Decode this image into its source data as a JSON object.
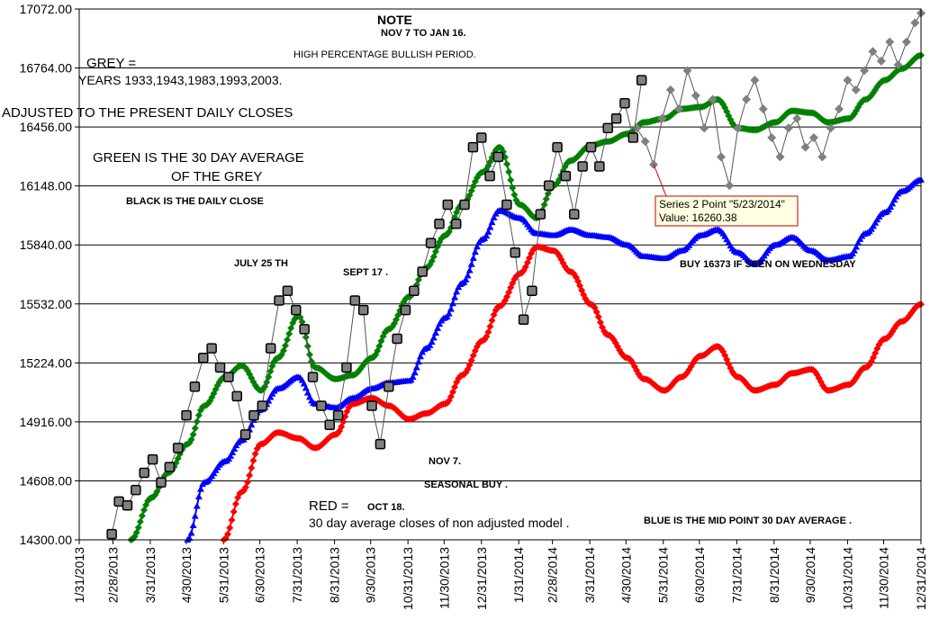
{
  "chart_data": {
    "type": "line",
    "ylim": [
      14300,
      17072
    ],
    "y_ticks": [
      "17072.00",
      "16764.00",
      "16456.00",
      "16148.00",
      "15840.00",
      "15532.00",
      "15224.00",
      "14916.00",
      "14608.00",
      "14300.00"
    ],
    "x_range": [
      "2013-01-31",
      "2014-12-31"
    ],
    "x_ticks": [
      {
        "date": "2013-01-31",
        "label": "1/31/2013"
      },
      {
        "date": "2013-02-28",
        "label": "2/28/2013"
      },
      {
        "date": "2013-03-31",
        "label": "3/31/2013"
      },
      {
        "date": "2013-04-30",
        "label": "4/30/2013"
      },
      {
        "date": "2013-05-31",
        "label": "5/31/2013"
      },
      {
        "date": "2013-06-30",
        "label": "6/30/2013"
      },
      {
        "date": "2013-07-31",
        "label": "7/31/2013"
      },
      {
        "date": "2013-08-31",
        "label": "8/31/2013"
      },
      {
        "date": "2013-09-30",
        "label": "9/30/2013"
      },
      {
        "date": "2013-10-31",
        "label": "10/31/2013"
      },
      {
        "date": "2013-11-30",
        "label": "11/30/2013"
      },
      {
        "date": "2013-12-31",
        "label": "12/31/2013"
      },
      {
        "date": "2014-01-31",
        "label": "1/31/2014"
      },
      {
        "date": "2014-02-28",
        "label": "2/28/2014"
      },
      {
        "date": "2014-03-31",
        "label": "3/31/2014"
      },
      {
        "date": "2014-04-30",
        "label": "4/30/2014"
      },
      {
        "date": "2014-05-31",
        "label": "5/31/2014"
      },
      {
        "date": "2014-06-30",
        "label": "6/30/2014"
      },
      {
        "date": "2014-07-31",
        "label": "7/31/2014"
      },
      {
        "date": "2014-08-31",
        "label": "8/31/2014"
      },
      {
        "date": "2014-09-30",
        "label": "9/30/2014"
      },
      {
        "date": "2014-10-31",
        "label": "10/31/2014"
      },
      {
        "date": "2014-11-30",
        "label": "11/30/2014"
      },
      {
        "date": "2014-12-31",
        "label": "12/31/2014"
      }
    ],
    "grid": "horizontal",
    "series": [
      {
        "key": "black",
        "color": "#808080",
        "marker": "square",
        "x": [
          "2013-02-27",
          "2013-03-05",
          "2013-03-12",
          "2013-03-19",
          "2013-03-26",
          "2013-04-02",
          "2013-04-09",
          "2013-04-16",
          "2013-04-23",
          "2013-04-30",
          "2013-05-07",
          "2013-05-14",
          "2013-05-21",
          "2013-05-28",
          "2013-06-04",
          "2013-06-11",
          "2013-06-18",
          "2013-06-25",
          "2013-07-02",
          "2013-07-09",
          "2013-07-16",
          "2013-07-23",
          "2013-07-30",
          "2013-08-06",
          "2013-08-13",
          "2013-08-20",
          "2013-08-27",
          "2013-09-03",
          "2013-09-10",
          "2013-09-17",
          "2013-09-24",
          "2013-10-01",
          "2013-10-08",
          "2013-10-15",
          "2013-10-22",
          "2013-10-29",
          "2013-11-05",
          "2013-11-12",
          "2013-11-19",
          "2013-11-26",
          "2013-12-03",
          "2013-12-10",
          "2013-12-17",
          "2013-12-24",
          "2013-12-31",
          "2014-01-07",
          "2014-01-14",
          "2014-01-21",
          "2014-01-28",
          "2014-02-04",
          "2014-02-11",
          "2014-02-18",
          "2014-02-25",
          "2014-03-04",
          "2014-03-11",
          "2014-03-18",
          "2014-03-25",
          "2014-04-01",
          "2014-04-08",
          "2014-04-15",
          "2014-04-22",
          "2014-04-29",
          "2014-05-06",
          "2014-05-13"
        ],
        "y": [
          14330,
          14500,
          14480,
          14560,
          14650,
          14720,
          14600,
          14680,
          14780,
          14950,
          15100,
          15250,
          15300,
          15200,
          15150,
          15050,
          14850,
          14950,
          15000,
          15300,
          15550,
          15600,
          15500,
          15400,
          15150,
          15000,
          14900,
          14950,
          15200,
          15550,
          15500,
          15000,
          14800,
          15100,
          15350,
          15500,
          15600,
          15700,
          15850,
          15950,
          16050,
          15950,
          16050,
          16350,
          16400,
          16200,
          16300,
          16050,
          15800,
          15450,
          15600,
          16000,
          16150,
          16350,
          16200,
          16000,
          16250,
          16350,
          16250,
          16450,
          16500,
          16580,
          16400,
          16700
        ]
      },
      {
        "key": "grey",
        "color": "#808080",
        "marker": "diamond",
        "x": [
          "2014-05-09",
          "2014-05-16",
          "2014-05-23",
          "2014-05-30",
          "2014-06-06",
          "2014-06-13",
          "2014-06-20",
          "2014-06-27",
          "2014-07-04",
          "2014-07-11",
          "2014-07-18",
          "2014-07-25",
          "2014-08-01",
          "2014-08-08",
          "2014-08-15",
          "2014-08-22",
          "2014-08-29",
          "2014-09-05",
          "2014-09-12",
          "2014-09-19",
          "2014-09-26",
          "2014-10-03",
          "2014-10-10",
          "2014-10-17",
          "2014-10-24",
          "2014-10-31",
          "2014-11-07",
          "2014-11-14",
          "2014-11-21",
          "2014-11-28",
          "2014-12-05",
          "2014-12-12",
          "2014-12-19",
          "2014-12-26",
          "2014-12-31"
        ],
        "y": [
          16450,
          16380,
          16260,
          16500,
          16650,
          16550,
          16750,
          16620,
          16450,
          16600,
          16300,
          16150,
          16450,
          16600,
          16700,
          16550,
          16400,
          16300,
          16450,
          16500,
          16350,
          16400,
          16300,
          16450,
          16550,
          16700,
          16650,
          16750,
          16850,
          16800,
          16900,
          16780,
          16900,
          17000,
          17050
        ]
      },
      {
        "key": "green",
        "color": "#008000",
        "marker": "diamond",
        "x": [
          "2013-03-15",
          "2013-04-01",
          "2013-04-15",
          "2013-05-01",
          "2013-05-15",
          "2013-06-01",
          "2013-06-15",
          "2013-07-01",
          "2013-07-15",
          "2013-08-01",
          "2013-08-15",
          "2013-09-01",
          "2013-09-15",
          "2013-10-01",
          "2013-10-15",
          "2013-11-01",
          "2013-11-15",
          "2013-12-01",
          "2013-12-15",
          "2014-01-01",
          "2014-01-15",
          "2014-02-01",
          "2014-02-15",
          "2014-03-01",
          "2014-03-15",
          "2014-04-01",
          "2014-04-15",
          "2014-05-01",
          "2014-05-15",
          "2014-06-01",
          "2014-06-15",
          "2014-07-01",
          "2014-07-15",
          "2014-08-01",
          "2014-08-15",
          "2014-09-01",
          "2014-09-15",
          "2014-10-01",
          "2014-10-15",
          "2014-11-01",
          "2014-11-15",
          "2014-12-01",
          "2014-12-15",
          "2014-12-31"
        ],
        "y": [
          14300,
          14520,
          14650,
          14800,
          15000,
          15150,
          15210,
          15080,
          15250,
          15470,
          15200,
          15140,
          15160,
          15250,
          15400,
          15570,
          15720,
          15890,
          16050,
          16220,
          16350,
          16050,
          15980,
          16150,
          16280,
          16360,
          16380,
          16420,
          16480,
          16500,
          16550,
          16560,
          16600,
          16450,
          16440,
          16480,
          16540,
          16530,
          16480,
          16500,
          16600,
          16700,
          16760,
          16830
        ]
      },
      {
        "key": "blue",
        "color": "#0000ff",
        "marker": "triangle",
        "x": [
          "2013-05-01",
          "2013-05-15",
          "2013-06-01",
          "2013-06-15",
          "2013-07-01",
          "2013-07-15",
          "2013-08-01",
          "2013-08-15",
          "2013-09-01",
          "2013-09-15",
          "2013-10-01",
          "2013-10-15",
          "2013-11-01",
          "2013-11-15",
          "2013-12-01",
          "2013-12-15",
          "2014-01-01",
          "2014-01-15",
          "2014-02-01",
          "2014-02-15",
          "2014-03-01",
          "2014-03-15",
          "2014-04-01",
          "2014-04-15",
          "2014-05-01",
          "2014-05-15",
          "2014-06-01",
          "2014-06-15",
          "2014-07-01",
          "2014-07-15",
          "2014-08-01",
          "2014-08-15",
          "2014-09-01",
          "2014-09-15",
          "2014-10-01",
          "2014-10-15",
          "2014-11-01",
          "2014-11-15",
          "2014-12-01",
          "2014-12-15",
          "2014-12-31"
        ],
        "y": [
          14300,
          14600,
          14710,
          14820,
          14980,
          15090,
          15150,
          15010,
          14990,
          15040,
          15090,
          15120,
          15130,
          15300,
          15460,
          15640,
          15870,
          16020,
          15980,
          15900,
          15890,
          15920,
          15890,
          15880,
          15840,
          15780,
          15770,
          15810,
          15890,
          15920,
          15800,
          15740,
          15840,
          15880,
          15810,
          15760,
          15780,
          15900,
          16010,
          16120,
          16180
        ]
      },
      {
        "key": "red",
        "color": "#ff0000",
        "marker": "diamond",
        "x": [
          "2013-05-31",
          "2013-06-15",
          "2013-07-01",
          "2013-07-15",
          "2013-08-01",
          "2013-08-15",
          "2013-09-01",
          "2013-09-15",
          "2013-10-01",
          "2013-10-15",
          "2013-11-01",
          "2013-11-15",
          "2013-12-01",
          "2013-12-15",
          "2014-01-01",
          "2014-01-15",
          "2014-02-01",
          "2014-02-15",
          "2014-03-01",
          "2014-03-15",
          "2014-04-01",
          "2014-04-15",
          "2014-05-01",
          "2014-05-15",
          "2014-06-01",
          "2014-06-15",
          "2014-07-01",
          "2014-07-15",
          "2014-08-01",
          "2014-08-15",
          "2014-09-01",
          "2014-09-15",
          "2014-10-01",
          "2014-10-15",
          "2014-11-01",
          "2014-11-15",
          "2014-12-01",
          "2014-12-15",
          "2014-12-31"
        ],
        "y": [
          14300,
          14550,
          14800,
          14860,
          14830,
          14780,
          14850,
          15010,
          15040,
          15000,
          14930,
          14960,
          15010,
          15160,
          15340,
          15520,
          15690,
          15830,
          15810,
          15700,
          15530,
          15370,
          15250,
          15140,
          15080,
          15150,
          15260,
          15310,
          15150,
          15080,
          15110,
          15170,
          15190,
          15080,
          15110,
          15200,
          15350,
          15440,
          15530
        ]
      }
    ],
    "annotations": [
      {
        "text": "NOTE",
        "pos": "top-center",
        "bold": true
      },
      {
        "text": "NOV 7 TO JAN 16.",
        "pos": "top-center",
        "bold": true
      },
      {
        "text": "HIGH PERCENTAGE BULLISH PERIOD.",
        "pos": "top-center"
      },
      {
        "text": "GREY =",
        "pos": "top-left"
      },
      {
        "text": "YEARS 1933,1943,1983,1993,2003.",
        "pos": "top-left"
      },
      {
        "text": "ADJUSTED TO THE PRESENT DAILY CLOSES",
        "pos": "top-left"
      },
      {
        "text": "GREEN IS THE 30 DAY AVERAGE",
        "pos": "top-left"
      },
      {
        "text": "OF THE GREY",
        "pos": "top-left"
      },
      {
        "text": "BLACK IS THE DAILY CLOSE",
        "pos": "top-left",
        "bold": true
      },
      {
        "text": "JULY 25 TH",
        "pos": "middle-left",
        "bold": true
      },
      {
        "text": "SEPT 17 .",
        "pos": "middle-center",
        "bold": true
      },
      {
        "text": "BUY 16373 IF SEEN ON WEDNESDAY",
        "pos": "middle-right",
        "bold": true
      },
      {
        "text": "NOV 7.",
        "pos": "bottom-center",
        "bold": true
      },
      {
        "text": "SEASONAL BUY .",
        "pos": "bottom-center",
        "bold": true
      },
      {
        "text": "RED =",
        "pos": "bottom-left"
      },
      {
        "text": "OCT 18.",
        "pos": "bottom-left",
        "bold": true
      },
      {
        "text": "30 day average closes of non adjusted model .",
        "pos": "bottom-left"
      },
      {
        "text": "BLUE IS THE MID POINT 30 DAY AVERAGE .",
        "pos": "bottom-right",
        "bold": true
      }
    ],
    "tooltip": {
      "line1": "Series 2 Point \"5/23/2014\"",
      "line2": "Value: 16260.38",
      "point_date": "2014-05-23",
      "point_value": 16260.38
    }
  }
}
